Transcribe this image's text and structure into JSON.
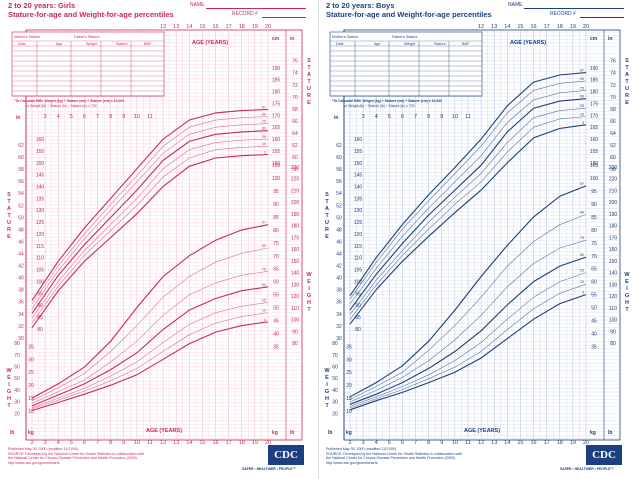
{
  "panels": [
    {
      "key": "girls",
      "title_line1": "2 to 20 years: Girls",
      "title_line2": "Stature-for-age and Weight-for-age percentiles",
      "name_label": "NAME",
      "record_label": "RECORD #",
      "color": "#c8285a",
      "thick_color": "#c8285a",
      "thin_color": "#d9739a",
      "grid_color": "#f0b6c8",
      "table_headers_row1": [
        "Mother's Stature",
        "Father's Stature"
      ],
      "table_headers_row2": [
        "Date",
        "Age",
        "Weight",
        "Stature",
        "BMI*"
      ],
      "bmi_note_1": "*To Calculate BMI: Weight (kg) ÷ Stature (cm) ÷ Stature (cm) x 10,000",
      "bmi_note_2": "or Weight (lb) ÷ Stature (in) ÷ Stature (in) x 703",
      "footer_1": "Published May 30, 2000 (modified 11/21/00).",
      "footer_2": "SOURCE: Developed by the National Center for Health Statistics in collaboration with",
      "footer_3": "the National Center for Chronic Disease Prevention and Health Promotion (2000).",
      "footer_4": "http://www.cdc.gov/growthcharts",
      "logo": "CDC",
      "slogan": "SAFER • HEALTHIER • PEOPLE™"
    },
    {
      "key": "boys",
      "title_line1": "2 to 20 years: Boys",
      "title_line2": "Stature-for-age and Weight-for-age percentiles",
      "name_label": "NAME",
      "record_label": "RECORD #",
      "color": "#1b3f7f",
      "thick_color": "#1b3f7f",
      "thin_color": "#5a74a8",
      "grid_color": "#b3c1dd",
      "table_headers_row1": [
        "Mother's Stature",
        "Father's Stature"
      ],
      "table_headers_row2": [
        "Date",
        "Age",
        "Weight",
        "Stature",
        "BMI*"
      ],
      "bmi_note_1": "*To Calculate BMI: Weight (kg) ÷ Stature (cm) ÷ Stature (cm) x 10,000",
      "bmi_note_2": "or Weight (lb) ÷ Stature (in) ÷ Stature (in) x 703",
      "footer_1": "Published May 30, 2000 (modified 11/21/00).",
      "footer_2": "SOURCE: Developed by the National Center for Health Statistics in collaboration with",
      "footer_3": "the National Center for Chronic Disease Prevention and Health Promotion (2000).",
      "footer_4": "http://www.cdc.gov/growthcharts",
      "logo": "CDC",
      "slogan": "SAFER • HEALTHIER • PEOPLE™"
    }
  ],
  "chart_data": [
    {
      "type": "line",
      "panel": "girls",
      "x_label": "AGE (YEARS)",
      "y_label_stature": "S T A T U R E",
      "y_label_weight": "W E I G H T",
      "unit_in": "in",
      "unit_cm": "cm",
      "unit_lb": "lb",
      "unit_kg": "kg",
      "x": [
        2,
        4,
        6,
        8,
        10,
        12,
        14,
        16,
        18,
        20
      ],
      "xlim": [
        2,
        20
      ],
      "x_ticks": [
        2,
        3,
        4,
        5,
        6,
        7,
        8,
        9,
        10,
        11,
        12,
        13,
        14,
        15,
        16,
        17,
        18,
        19,
        20
      ],
      "stature_ylim_cm": [
        77,
        195
      ],
      "weight_ylim_kg": [
        5,
        107
      ],
      "stature_cm_ticks": [
        80,
        85,
        90,
        95,
        100,
        105,
        110,
        115,
        120,
        125,
        130,
        135,
        140,
        145,
        150,
        155,
        160,
        165,
        170,
        175,
        180,
        185,
        190
      ],
      "stature_in_ticks": [
        30,
        32,
        34,
        36,
        38,
        40,
        42,
        44,
        46,
        48,
        50,
        52,
        54,
        56,
        58,
        60,
        62,
        64,
        66,
        68,
        70,
        72,
        74,
        76
      ],
      "weight_kg_ticks": [
        10,
        15,
        20,
        25,
        30,
        35,
        40,
        45,
        50,
        55,
        60,
        65,
        70,
        75,
        80,
        85,
        90,
        95,
        100,
        105
      ],
      "weight_lb_ticks": [
        20,
        30,
        40,
        50,
        60,
        70,
        80,
        90,
        100,
        110,
        120,
        130,
        140,
        150,
        160,
        170,
        180,
        190,
        200,
        210,
        220,
        230
      ],
      "stature_series": [
        {
          "name": "97",
          "values": [
            92,
            108.5,
            122.5,
            135,
            147.5,
            160,
            168,
            171,
            172,
            172.5
          ]
        },
        {
          "name": "90",
          "values": [
            90.5,
            106.5,
            120,
            132.5,
            144.5,
            157,
            165,
            168,
            169,
            169.5
          ]
        },
        {
          "name": "75",
          "values": [
            88.5,
            104.5,
            118,
            130,
            142,
            154,
            162,
            165,
            166,
            166.5
          ]
        },
        {
          "name": "50",
          "values": [
            86.5,
            102.5,
            115.5,
            127,
            138.5,
            151,
            159,
            162,
            163,
            163.5
          ]
        },
        {
          "name": "25",
          "values": [
            84.5,
            100,
            113,
            124,
            135,
            147.5,
            155.5,
            158.5,
            159.5,
            160
          ]
        },
        {
          "name": "10",
          "values": [
            82.5,
            98,
            111,
            121.5,
            132,
            144,
            152,
            155.5,
            156.5,
            157
          ]
        },
        {
          "name": "3",
          "values": [
            80.5,
            96,
            108.5,
            118.5,
            128.5,
            140,
            148.5,
            152,
            153,
            153.5
          ]
        }
      ],
      "weight_series": [
        {
          "name": "97",
          "values": [
            15,
            20.5,
            27,
            37,
            50,
            62,
            70,
            76,
            80,
            82
          ]
        },
        {
          "name": "90",
          "values": [
            14,
            19,
            24.5,
            33,
            43,
            54,
            62,
            67.5,
            71,
            73
          ]
        },
        {
          "name": "75",
          "values": [
            13,
            17.5,
            22,
            29,
            37,
            47,
            55,
            59.5,
            62.5,
            64
          ]
        },
        {
          "name": "50",
          "values": [
            12,
            16.2,
            20.5,
            26,
            32.5,
            41.5,
            49,
            53.5,
            56.5,
            58
          ]
        },
        {
          "name": "25",
          "values": [
            11.3,
            15,
            18.8,
            23.5,
            29,
            36.5,
            43.5,
            48,
            50.5,
            52
          ]
        },
        {
          "name": "10",
          "values": [
            10.8,
            14.2,
            17.7,
            21.7,
            26.5,
            33,
            39.5,
            44,
            46.5,
            48
          ]
        },
        {
          "name": "3",
          "values": [
            10.2,
            13.3,
            16.5,
            20,
            24,
            30,
            36,
            40.5,
            43,
            44.5
          ]
        }
      ]
    },
    {
      "type": "line",
      "panel": "boys",
      "x_label": "AGE (YEARS)",
      "y_label_stature": "S T A T U R E",
      "y_label_weight": "W E I G H T",
      "unit_in": "in",
      "unit_cm": "cm",
      "unit_lb": "lb",
      "unit_kg": "kg",
      "x": [
        2,
        4,
        6,
        8,
        10,
        12,
        14,
        16,
        18,
        20
      ],
      "xlim": [
        2,
        20
      ],
      "x_ticks": [
        2,
        3,
        4,
        5,
        6,
        7,
        8,
        9,
        10,
        11,
        12,
        13,
        14,
        15,
        16,
        17,
        18,
        19,
        20
      ],
      "stature_ylim_cm": [
        77,
        195
      ],
      "weight_ylim_kg": [
        5,
        107
      ],
      "stature_cm_ticks": [
        80,
        85,
        90,
        95,
        100,
        105,
        110,
        115,
        120,
        125,
        130,
        135,
        140,
        145,
        150,
        155,
        160,
        165,
        170,
        175,
        180,
        185,
        190
      ],
      "stature_in_ticks": [
        30,
        32,
        34,
        36,
        38,
        40,
        42,
        44,
        46,
        48,
        50,
        52,
        54,
        56,
        58,
        60,
        62,
        64,
        66,
        68,
        70,
        72,
        74,
        76
      ],
      "weight_kg_ticks": [
        10,
        15,
        20,
        25,
        30,
        35,
        40,
        45,
        50,
        55,
        60,
        65,
        70,
        75,
        80,
        85,
        90,
        95,
        100,
        105
      ],
      "weight_lb_ticks": [
        20,
        30,
        40,
        50,
        60,
        70,
        80,
        90,
        100,
        110,
        120,
        130,
        140,
        150,
        160,
        170,
        180,
        190,
        200,
        210,
        220,
        230
      ],
      "stature_series": [
        {
          "name": "97",
          "values": [
            94,
            110,
            124,
            136.5,
            148,
            160,
            174,
            184,
            187,
            188
          ]
        },
        {
          "name": "90",
          "values": [
            92.5,
            108,
            122,
            134,
            145.5,
            157,
            171,
            180.5,
            183.5,
            184.5
          ]
        },
        {
          "name": "75",
          "values": [
            90.5,
            105.5,
            119,
            131,
            142,
            153,
            167,
            176.5,
            179.5,
            180.5
          ]
        },
        {
          "name": "50",
          "values": [
            88,
            103,
            116,
            128,
            138.5,
            149,
            163,
            173,
            176,
            177
          ]
        },
        {
          "name": "25",
          "values": [
            86,
            100.5,
            113,
            125,
            135.5,
            145.5,
            158.5,
            169,
            172,
            173
          ]
        },
        {
          "name": "10",
          "values": [
            84,
            98.5,
            111,
            122,
            132.5,
            142,
            154.5,
            165,
            168.5,
            169.5
          ]
        },
        {
          "name": "3",
          "values": [
            82,
            96.5,
            108.5,
            119,
            129,
            138.5,
            150,
            160.5,
            164.5,
            166
          ]
        }
      ],
      "weight_series": [
        {
          "name": "97",
          "values": [
            15.5,
            21,
            27.5,
            37,
            49,
            62,
            74,
            85,
            93,
            97
          ]
        },
        {
          "name": "90",
          "values": [
            14.5,
            19.5,
            25,
            33.5,
            43,
            54,
            66,
            75.5,
            82,
            86
          ]
        },
        {
          "name": "75",
          "values": [
            13.5,
            18,
            23,
            29.5,
            37.5,
            47,
            58,
            67,
            73,
            76
          ]
        },
        {
          "name": "50",
          "values": [
            12.6,
            16.5,
            21,
            26.5,
            33,
            41,
            51,
            60,
            66,
            69.5
          ]
        },
        {
          "name": "25",
          "values": [
            11.8,
            15.5,
            19.5,
            24,
            29.5,
            36.5,
            45.5,
            54,
            60,
            63.5
          ]
        },
        {
          "name": "10",
          "values": [
            11.2,
            14.7,
            18.3,
            22.5,
            27,
            33,
            41.5,
            49.5,
            55.5,
            59
          ]
        },
        {
          "name": "3",
          "values": [
            10.5,
            14,
            17.2,
            21,
            25,
            30.5,
            38,
            45.5,
            51.5,
            55
          ]
        }
      ]
    }
  ]
}
